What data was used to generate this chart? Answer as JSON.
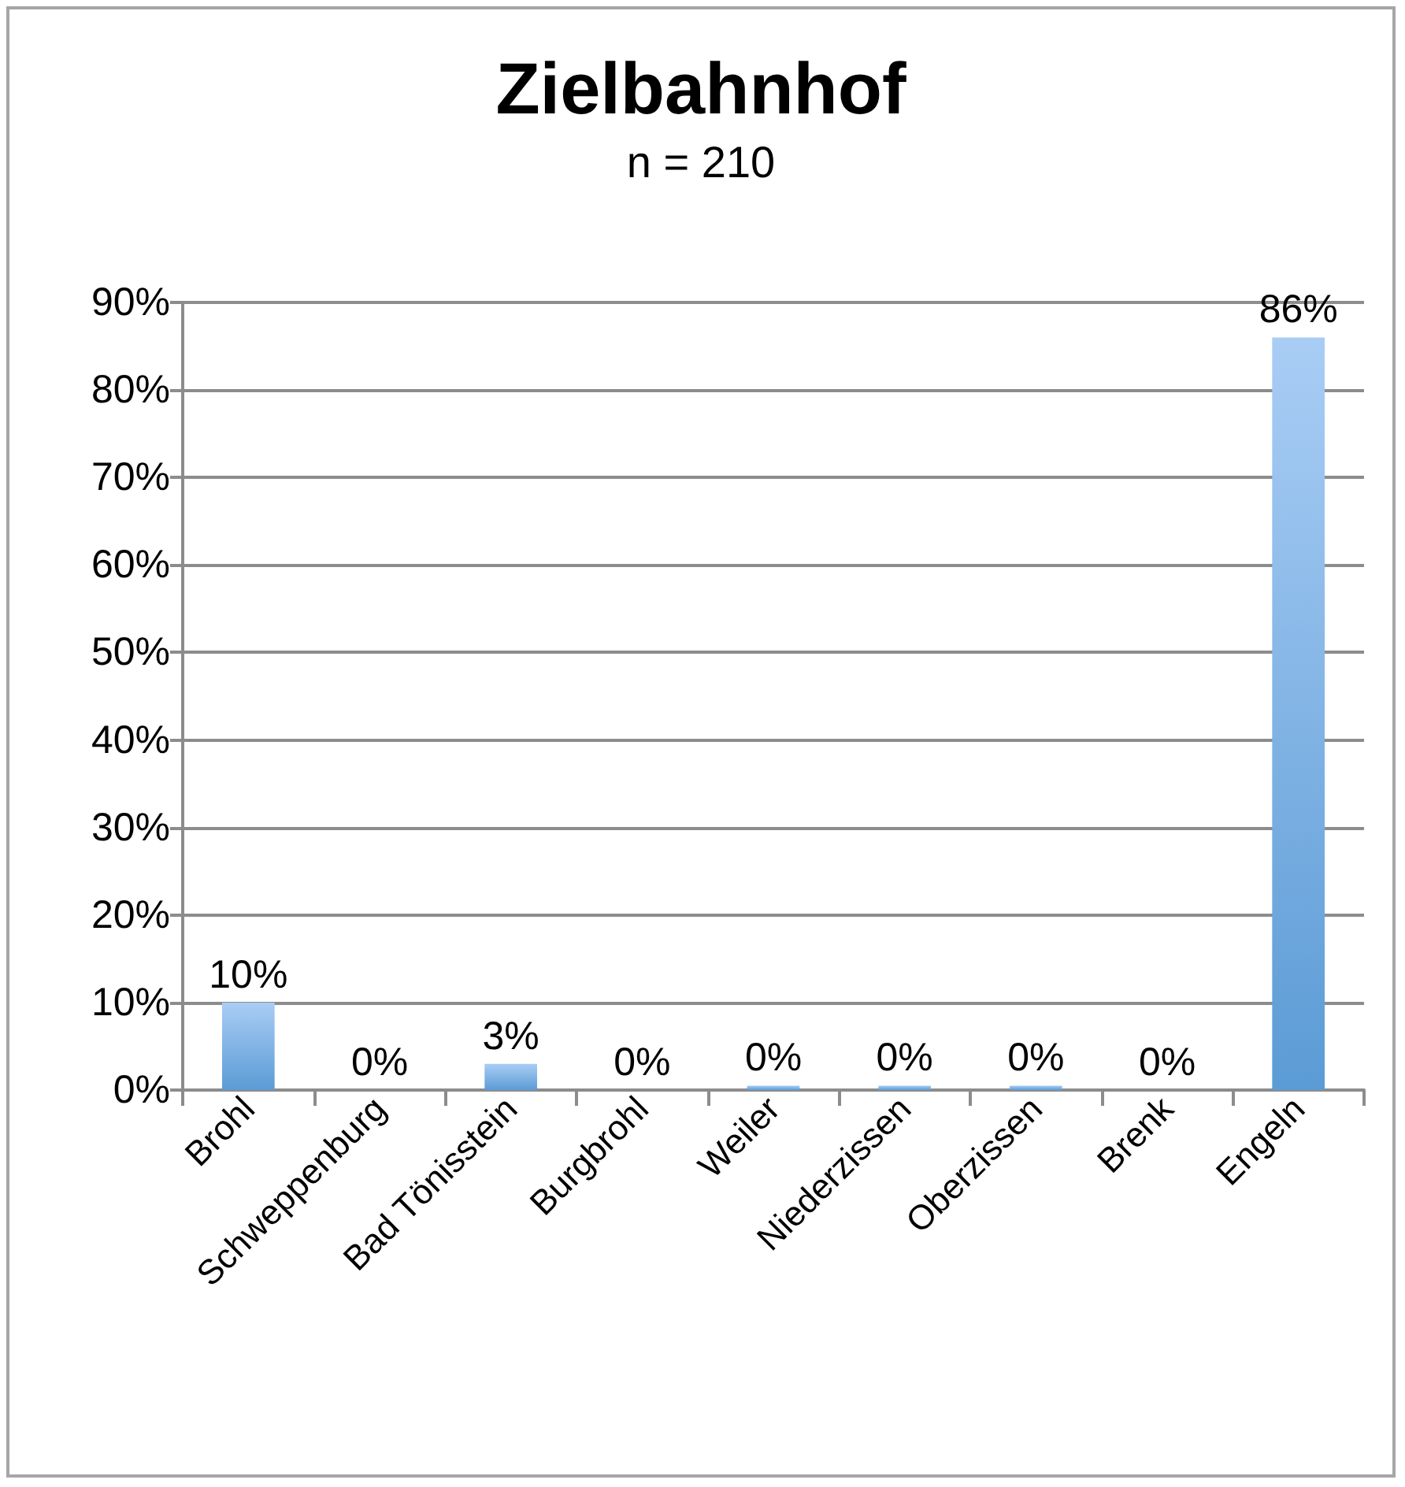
{
  "chart_data": {
    "type": "bar",
    "title": "Zielbahnhof",
    "subtitle": "n = 210",
    "categories": [
      "Brohl",
      "Schweppenburg",
      "Bad Tönisstein",
      "Burgbrohl",
      "Weiler",
      "Niederzissen",
      "Oberzissen",
      "Brenk",
      "Engeln"
    ],
    "values": [
      10,
      0,
      3,
      0,
      0.5,
      0.5,
      0.5,
      0,
      86
    ],
    "value_labels": [
      "10%",
      "0%",
      "3%",
      "0%",
      "0%",
      "0%",
      "0%",
      "0%",
      "86%"
    ],
    "color": "#5b9bd5",
    "ylim": [
      0,
      90
    ],
    "yticks": [
      {
        "value": 0,
        "label": "0%"
      },
      {
        "value": 10,
        "label": "10%"
      },
      {
        "value": 20,
        "label": "20%"
      },
      {
        "value": 30,
        "label": "30%"
      },
      {
        "value": 40,
        "label": "40%"
      },
      {
        "value": 50,
        "label": "50%"
      },
      {
        "value": 60,
        "label": "60%"
      },
      {
        "value": 70,
        "label": "70%"
      },
      {
        "value": 80,
        "label": "80%"
      },
      {
        "value": 90,
        "label": "90%"
      }
    ],
    "grid": "y"
  }
}
